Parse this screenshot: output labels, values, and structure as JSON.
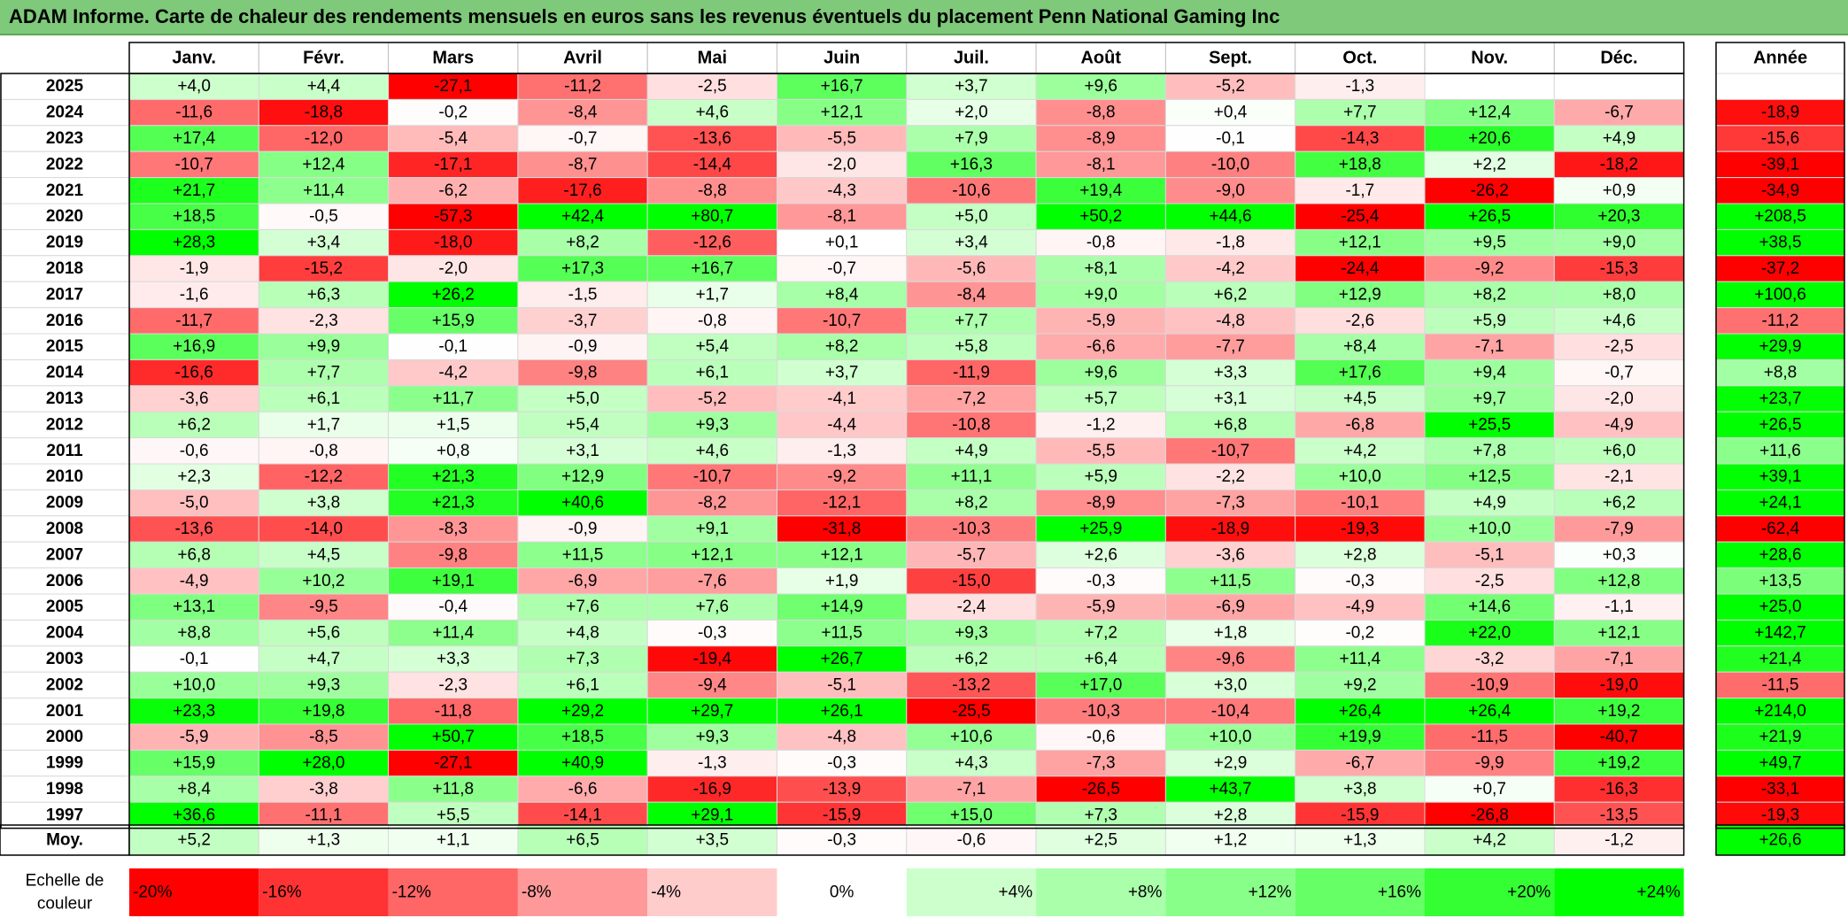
{
  "title": "ADAM Informe. Carte de chaleur des rendements mensuels en euros sans les revenus éventuels du placement Penn National Gaming Inc",
  "chart_data": {
    "type": "heatmap",
    "title": "ADAM Informe. Carte de chaleur des rendements mensuels en euros sans les revenus éventuels du placement Penn National Gaming Inc",
    "months": [
      "Janv.",
      "Févr.",
      "Mars",
      "Avril",
      "Mai",
      "Juin",
      "Juil.",
      "Août",
      "Sept.",
      "Oct.",
      "Nov.",
      "Déc."
    ],
    "year_column_label": "Année",
    "average_row_label": "Moy.",
    "rows": [
      {
        "year": "2025",
        "values": [
          4.0,
          4.4,
          -27.1,
          -11.2,
          -2.5,
          16.7,
          3.7,
          9.6,
          -5.2,
          -1.3,
          null,
          null
        ],
        "annual": null
      },
      {
        "year": "2024",
        "values": [
          -11.6,
          -18.8,
          -0.2,
          -8.4,
          4.6,
          12.1,
          2.0,
          -8.8,
          0.4,
          7.7,
          12.4,
          -6.7
        ],
        "annual": -18.9
      },
      {
        "year": "2023",
        "values": [
          17.4,
          -12.0,
          -5.4,
          -0.7,
          -13.6,
          -5.5,
          7.9,
          -8.9,
          -0.1,
          -14.3,
          20.6,
          4.9
        ],
        "annual": -15.6
      },
      {
        "year": "2022",
        "values": [
          -10.7,
          12.4,
          -17.1,
          -8.7,
          -14.4,
          -2.0,
          16.3,
          -8.1,
          -10.0,
          18.8,
          2.2,
          -18.2
        ],
        "annual": -39.1
      },
      {
        "year": "2021",
        "values": [
          21.7,
          11.4,
          -6.2,
          -17.6,
          -8.8,
          -4.3,
          -10.6,
          19.4,
          -9.0,
          -1.7,
          -26.2,
          0.9
        ],
        "annual": -34.9
      },
      {
        "year": "2020",
        "values": [
          18.5,
          -0.5,
          -57.3,
          42.4,
          80.7,
          -8.1,
          5.0,
          50.2,
          44.6,
          -25.4,
          26.5,
          20.3
        ],
        "annual": 208.5
      },
      {
        "year": "2019",
        "values": [
          28.3,
          3.4,
          -18.0,
          8.2,
          -12.6,
          0.1,
          3.4,
          -0.8,
          -1.8,
          12.1,
          9.5,
          9.0
        ],
        "annual": 38.5
      },
      {
        "year": "2018",
        "values": [
          -1.9,
          -15.2,
          -2.0,
          17.3,
          16.7,
          -0.7,
          -5.6,
          8.1,
          -4.2,
          -24.4,
          -9.2,
          -15.3
        ],
        "annual": -37.2
      },
      {
        "year": "2017",
        "values": [
          -1.6,
          6.3,
          26.2,
          -1.5,
          1.7,
          8.4,
          -8.4,
          9.0,
          6.2,
          12.9,
          8.2,
          8.0
        ],
        "annual": 100.6
      },
      {
        "year": "2016",
        "values": [
          -11.7,
          -2.3,
          15.9,
          -3.7,
          -0.8,
          -10.7,
          7.7,
          -5.9,
          -4.8,
          -2.6,
          5.9,
          4.6
        ],
        "annual": -11.2
      },
      {
        "year": "2015",
        "values": [
          16.9,
          9.9,
          -0.1,
          -0.9,
          5.4,
          8.2,
          5.8,
          -6.6,
          -7.7,
          8.4,
          -7.1,
          -2.5
        ],
        "annual": 29.9
      },
      {
        "year": "2014",
        "values": [
          -16.6,
          7.7,
          -4.2,
          -9.8,
          6.1,
          3.7,
          -11.9,
          9.6,
          3.3,
          17.6,
          9.4,
          -0.7
        ],
        "annual": 8.8
      },
      {
        "year": "2013",
        "values": [
          -3.6,
          6.1,
          11.7,
          5.0,
          -5.2,
          -4.1,
          -7.2,
          5.7,
          3.1,
          4.5,
          9.7,
          -2.0
        ],
        "annual": 23.7
      },
      {
        "year": "2012",
        "values": [
          6.2,
          1.7,
          1.5,
          5.4,
          9.3,
          -4.4,
          -10.8,
          -1.2,
          6.8,
          -6.8,
          25.5,
          -4.9
        ],
        "annual": 26.5
      },
      {
        "year": "2011",
        "values": [
          -0.6,
          -0.8,
          0.8,
          3.1,
          4.6,
          -1.3,
          4.9,
          -5.5,
          -10.7,
          4.2,
          7.8,
          6.0
        ],
        "annual": 11.6
      },
      {
        "year": "2010",
        "values": [
          2.3,
          -12.2,
          21.3,
          12.9,
          -10.7,
          -9.2,
          11.1,
          5.9,
          -2.2,
          10.0,
          12.5,
          -2.1
        ],
        "annual": 39.1
      },
      {
        "year": "2009",
        "values": [
          -5.0,
          3.8,
          21.3,
          40.6,
          -8.2,
          -12.1,
          8.2,
          -8.9,
          -7.3,
          -10.1,
          4.9,
          6.2
        ],
        "annual": 24.1
      },
      {
        "year": "2008",
        "values": [
          -13.6,
          -14.0,
          -8.3,
          -0.9,
          9.1,
          -31.8,
          -10.3,
          25.9,
          -18.9,
          -19.3,
          10.0,
          -7.9
        ],
        "annual": -62.4
      },
      {
        "year": "2007",
        "values": [
          6.8,
          4.5,
          -9.8,
          11.5,
          12.1,
          12.1,
          -5.7,
          2.6,
          -3.6,
          2.8,
          -5.1,
          0.3
        ],
        "annual": 28.6
      },
      {
        "year": "2006",
        "values": [
          -4.9,
          10.2,
          19.1,
          -6.9,
          -7.6,
          1.9,
          -15.0,
          -0.3,
          11.5,
          -0.3,
          -2.5,
          12.8
        ],
        "annual": 13.5
      },
      {
        "year": "2005",
        "values": [
          13.1,
          -9.5,
          -0.4,
          7.6,
          7.6,
          14.9,
          -2.4,
          -5.9,
          -6.9,
          -4.9,
          14.6,
          -1.1
        ],
        "annual": 25.0
      },
      {
        "year": "2004",
        "values": [
          8.8,
          5.6,
          11.4,
          4.8,
          -0.3,
          11.5,
          9.3,
          7.2,
          1.8,
          -0.2,
          22.0,
          12.1
        ],
        "annual": 142.7
      },
      {
        "year": "2003",
        "values": [
          -0.1,
          4.7,
          3.3,
          7.3,
          -19.4,
          26.7,
          6.2,
          6.4,
          -9.6,
          11.4,
          -3.2,
          -7.1
        ],
        "annual": 21.4
      },
      {
        "year": "2002",
        "values": [
          10.0,
          9.3,
          -2.3,
          6.1,
          -9.4,
          -5.1,
          -13.2,
          17.0,
          3.0,
          9.2,
          -10.9,
          -19.0
        ],
        "annual": -11.5
      },
      {
        "year": "2001",
        "values": [
          23.3,
          19.8,
          -11.8,
          29.2,
          29.7,
          26.1,
          -25.5,
          -10.3,
          -10.4,
          26.4,
          26.4,
          19.2
        ],
        "annual": 214.0
      },
      {
        "year": "2000",
        "values": [
          -5.9,
          -8.5,
          50.7,
          18.5,
          9.3,
          -4.8,
          10.6,
          -0.6,
          10.0,
          19.9,
          -11.5,
          -40.7
        ],
        "annual": 21.9
      },
      {
        "year": "1999",
        "values": [
          15.9,
          28.0,
          -27.1,
          40.9,
          -1.3,
          -0.3,
          4.3,
          -7.3,
          2.9,
          -6.7,
          -9.9,
          19.2
        ],
        "annual": 49.7
      },
      {
        "year": "1998",
        "values": [
          8.4,
          -3.8,
          11.8,
          -6.6,
          -16.9,
          -13.9,
          -7.1,
          -26.5,
          43.7,
          3.8,
          0.7,
          -16.3
        ],
        "annual": -33.1
      },
      {
        "year": "1997",
        "values": [
          36.6,
          -11.1,
          5.5,
          -14.1,
          29.1,
          -15.9,
          15.0,
          7.3,
          2.8,
          -15.9,
          -26.8,
          -13.5
        ],
        "annual": -19.3
      }
    ],
    "average": {
      "values": [
        5.2,
        1.3,
        1.1,
        6.5,
        3.5,
        -0.3,
        -0.6,
        2.5,
        1.2,
        1.3,
        4.2,
        -1.2
      ],
      "annual": 26.6
    },
    "color_scale": {
      "label": "Echelle de couleur",
      "stops": [
        {
          "label": "-20%",
          "value": -20,
          "color": "#ff0000"
        },
        {
          "label": "-16%",
          "value": -16,
          "color": "#ff3333"
        },
        {
          "label": "-12%",
          "value": -12,
          "color": "#ff6666"
        },
        {
          "label": "-8%",
          "value": -8,
          "color": "#ff9999"
        },
        {
          "label": "-4%",
          "value": -4,
          "color": "#ffcccc"
        },
        {
          "label": "0%",
          "value": 0,
          "color": "#ffffff"
        },
        {
          "label": "+4%",
          "value": 4,
          "color": "#ccffcc"
        },
        {
          "label": "+8%",
          "value": 8,
          "color": "#aaffaa"
        },
        {
          "label": "+12%",
          "value": 12,
          "color": "#88ff88"
        },
        {
          "label": "+16%",
          "value": 16,
          "color": "#66ff66"
        },
        {
          "label": "+20%",
          "value": 20,
          "color": "#33ff33"
        },
        {
          "label": "+24%",
          "value": 24,
          "color": "#00ff00"
        }
      ]
    }
  }
}
